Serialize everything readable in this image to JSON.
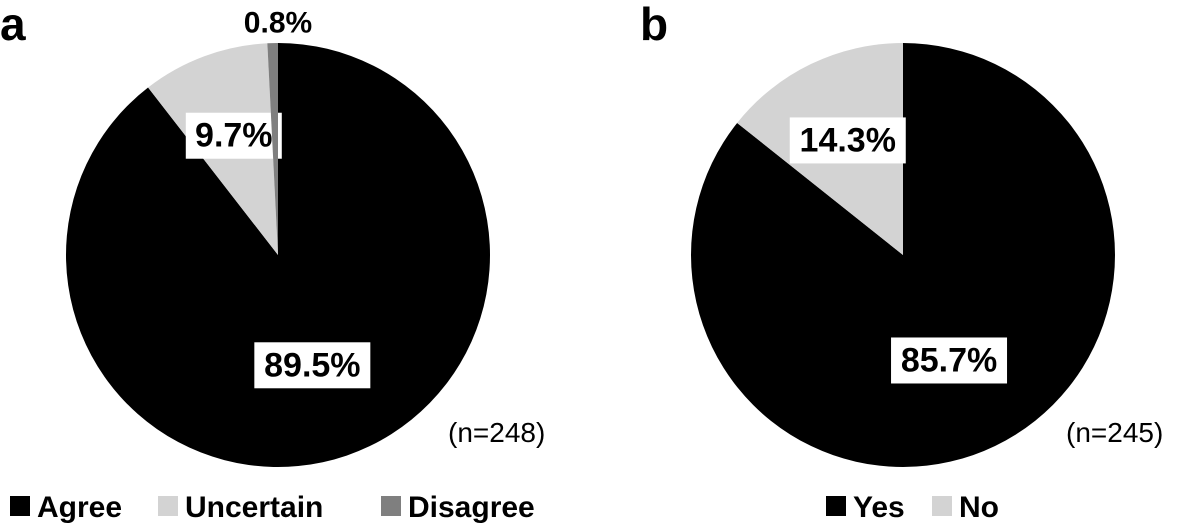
{
  "chart_data": [
    {
      "type": "pie",
      "panel": "a",
      "n_label": "(n=248)",
      "slices": [
        {
          "label": "Agree",
          "value": 89.5,
          "display": "89.5%",
          "color": "#000000"
        },
        {
          "label": "Uncertain",
          "value": 9.7,
          "display": "9.7%",
          "color": "#d3d3d3"
        },
        {
          "label": "Disagree",
          "value": 0.8,
          "display": "0.8%",
          "color": "#7f7f7f"
        }
      ],
      "legend": {
        "placement": "bottom"
      }
    },
    {
      "type": "pie",
      "panel": "b",
      "n_label": "(n=245)",
      "slices": [
        {
          "label": "Yes",
          "value": 85.7,
          "display": "85.7%",
          "color": "#000000"
        },
        {
          "label": "No",
          "value": 14.3,
          "display": "14.3%",
          "color": "#d3d3d3"
        }
      ],
      "legend": {
        "placement": "bottom"
      }
    }
  ]
}
